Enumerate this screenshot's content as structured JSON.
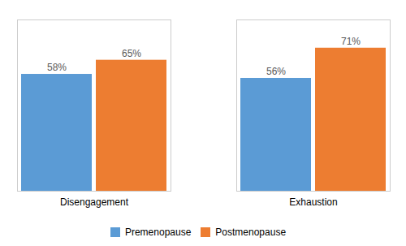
{
  "chart_data": {
    "type": "bar",
    "categories": [
      "Disengagement",
      "Exhaustion"
    ],
    "series": [
      {
        "name": "Premenopause",
        "color": "#5B9BD5",
        "values": [
          58,
          56
        ],
        "value_labels": [
          "58%",
          "56%"
        ]
      },
      {
        "name": "Postmenopause",
        "color": "#ED7D31",
        "values": [
          65,
          71
        ],
        "value_labels": [
          "65%",
          "71%"
        ]
      }
    ],
    "ylim": [
      0,
      85
    ],
    "grid": false,
    "data_labels": true,
    "tick_labels": "x",
    "legend": "bottom"
  }
}
